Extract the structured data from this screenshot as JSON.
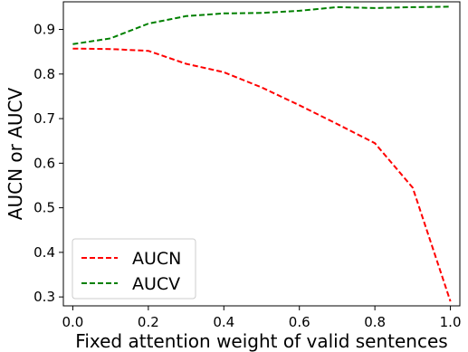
{
  "chart_data": {
    "type": "line",
    "title": "",
    "xlabel": "Fixed attention weight of valid sentences",
    "ylabel": "AUCN or AUCV",
    "xlim": [
      -0.025,
      1.025
    ],
    "ylim": [
      0.28,
      0.962
    ],
    "xticks": [
      0.0,
      0.2,
      0.4,
      0.6,
      0.8,
      1.0
    ],
    "xtick_labels": [
      "0.0",
      "0.2",
      "0.4",
      "0.6",
      "0.8",
      "1.0"
    ],
    "yticks": [
      0.3,
      0.4,
      0.5,
      0.6,
      0.7,
      0.8,
      0.9
    ],
    "ytick_labels": [
      "0.3",
      "0.4",
      "0.5",
      "0.6",
      "0.7",
      "0.8",
      "0.9"
    ],
    "grid": false,
    "legend_position": "lower-left",
    "x": [
      0.0,
      0.1,
      0.2,
      0.3,
      0.4,
      0.5,
      0.6,
      0.7,
      0.8,
      0.9,
      1.0
    ],
    "series": [
      {
        "name": "AUCN",
        "color": "#ff0000",
        "linestyle": "dashed",
        "values": [
          0.857,
          0.856,
          0.852,
          0.823,
          0.804,
          0.77,
          0.73,
          0.688,
          0.645,
          0.545,
          0.29
        ]
      },
      {
        "name": "AUCV",
        "color": "#008000",
        "linestyle": "dashed",
        "values": [
          0.867,
          0.88,
          0.913,
          0.93,
          0.936,
          0.937,
          0.942,
          0.95,
          0.948,
          0.95,
          0.951
        ]
      }
    ]
  }
}
